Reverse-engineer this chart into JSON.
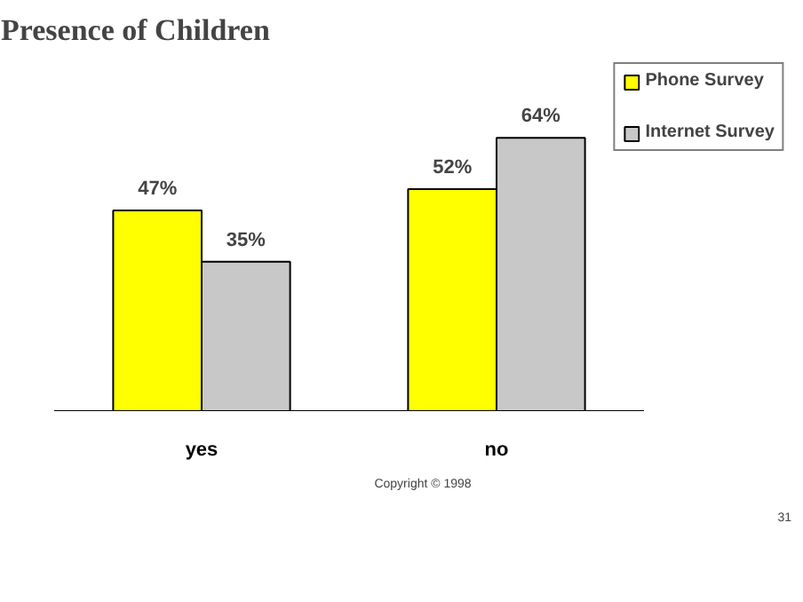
{
  "chart_data": {
    "type": "bar",
    "title": "Presence of Children",
    "categories": [
      "yes",
      "no"
    ],
    "series": [
      {
        "name": "Phone Survey",
        "color": "#ffff00",
        "values": [
          47,
          52
        ],
        "value_labels": [
          "47%",
          "52%"
        ]
      },
      {
        "name": "Internet Survey",
        "color": "#c8c8c8",
        "values": [
          35,
          64
        ],
        "value_labels": [
          "35%",
          "64%"
        ]
      }
    ],
    "legend": "right",
    "grid": false,
    "tick_labels": "x",
    "annotations": [
      "Copyright © 1998",
      "31"
    ]
  }
}
